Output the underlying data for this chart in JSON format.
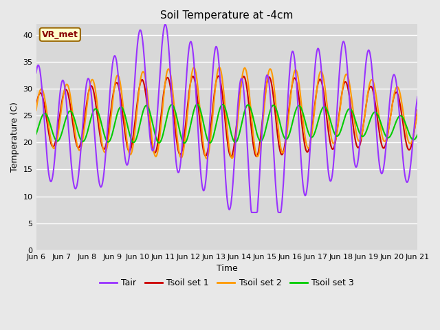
{
  "title": "Soil Temperature at -4cm",
  "xlabel": "Time",
  "ylabel": "Temperature (C)",
  "ylim": [
    0,
    42
  ],
  "yticks": [
    0,
    5,
    10,
    15,
    20,
    25,
    30,
    35,
    40
  ],
  "xlim": [
    0,
    15
  ],
  "xtick_labels": [
    "Jun 6",
    "Jun 7",
    "Jun 8",
    "Jun 9",
    "Jun 10",
    "Jun 11",
    "Jun 12",
    "Jun 13",
    "Jun 14",
    "Jun 15",
    "Jun 16",
    "Jun 17",
    "Jun 18",
    "Jun 19",
    "Jun 20",
    "Jun 21"
  ],
  "colors": {
    "Tair": "#9933ff",
    "Tsoil1": "#cc0000",
    "Tsoil2": "#ff9900",
    "Tsoil3": "#00cc00"
  },
  "legend_labels": [
    "Tair",
    "Tsoil set 1",
    "Tsoil set 2",
    "Tsoil set 3"
  ],
  "annotation_text": "VR_met",
  "annotation_box_color": "#ffffcc",
  "annotation_border_color": "#996600",
  "background_color": "#e8e8e8",
  "plot_bg_color": "#d8d8d8",
  "grid_color": "#ffffff",
  "linewidth": 1.5
}
